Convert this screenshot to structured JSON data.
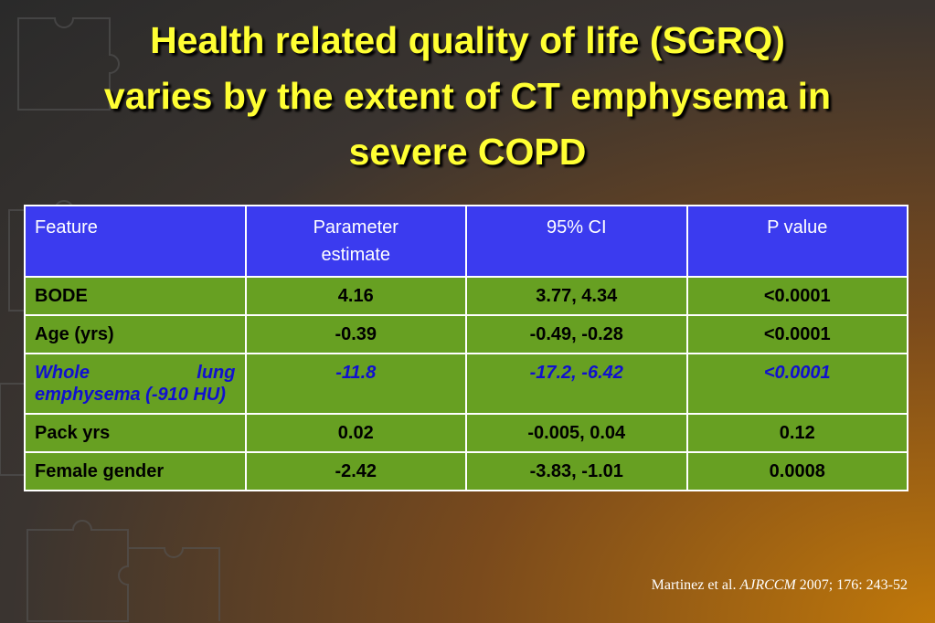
{
  "header": {
    "title_lines": [
      "Health related quality of life (SGRQ)",
      "varies by the extent of CT emphysema in",
      "severe COPD"
    ]
  },
  "table": {
    "columns": [
      [
        "Feature"
      ],
      [
        "Parameter",
        "estimate"
      ],
      [
        "95% CI"
      ],
      [
        "P value"
      ]
    ],
    "rows": [
      {
        "cells": [
          "BODE",
          "4.16",
          "3.77, 4.34",
          "<0.0001"
        ],
        "highlight": false
      },
      {
        "cells": [
          "Age (yrs)",
          "-0.39",
          "-0.49, -0.28",
          "<0.0001"
        ],
        "highlight": false
      },
      {
        "cells": [
          "Whole lung emphysema (-910 HU)",
          "-11.8",
          "-17.2, -6.42",
          "<0.0001"
        ],
        "highlight": true
      },
      {
        "cells": [
          "Pack yrs",
          "0.02",
          "-0.005, 0.04",
          "0.12"
        ],
        "highlight": false
      },
      {
        "cells": [
          "Female gender",
          "-2.42",
          "-3.83, -1.01",
          "0.0008"
        ],
        "highlight": false
      }
    ]
  },
  "citation": {
    "authors": "Martinez et al.",
    "journal": "AJRCCM",
    "details": "2007; 176: 243-52"
  }
}
